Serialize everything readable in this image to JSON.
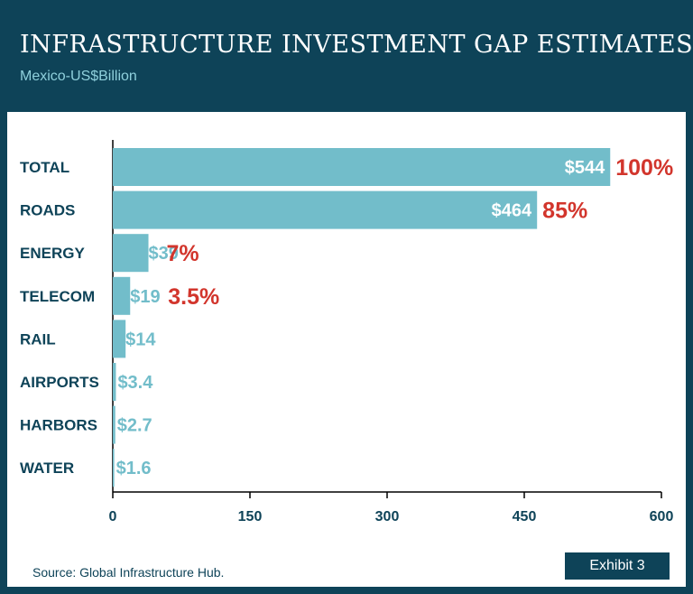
{
  "header": {
    "title": "INFRASTRUCTURE INVESTMENT GAP ESTIMATES",
    "subtitle": "Mexico-US$Billion"
  },
  "footer": {
    "source": "Source: Global Infrastructure Hub.",
    "exhibit": "Exhibit 3"
  },
  "colors": {
    "bar": "#72bdca",
    "category_text": "#0e4358",
    "percent_text": "#d2352c",
    "value_label_inside": "#ffffff",
    "value_label_outside": "#72bdca",
    "background": "#0e4358"
  },
  "chart_data": {
    "type": "bar",
    "orientation": "horizontal",
    "title": "INFRASTRUCTURE INVESTMENT GAP ESTIMATES",
    "subtitle": "Mexico-US$Billion",
    "categories": [
      "TOTAL",
      "ROADS",
      "ENERGY",
      "TELECOM",
      "RAIL",
      "AIRPORTS",
      "HARBORS",
      "WATER"
    ],
    "values": [
      544,
      464,
      39,
      19,
      14,
      3.4,
      2.7,
      1.6
    ],
    "value_labels": [
      "$544",
      "$464",
      "$39",
      "$19",
      "$14",
      "$3.4",
      "$2.7",
      "$1.6"
    ],
    "percent_labels": [
      "100%",
      "85%",
      "7%",
      "3.5%",
      "",
      "",
      "",
      ""
    ],
    "x_ticks": [
      "0",
      "150",
      "300",
      "450",
      "600"
    ],
    "xlim": [
      0,
      600
    ],
    "grid": false,
    "legend": "none"
  }
}
